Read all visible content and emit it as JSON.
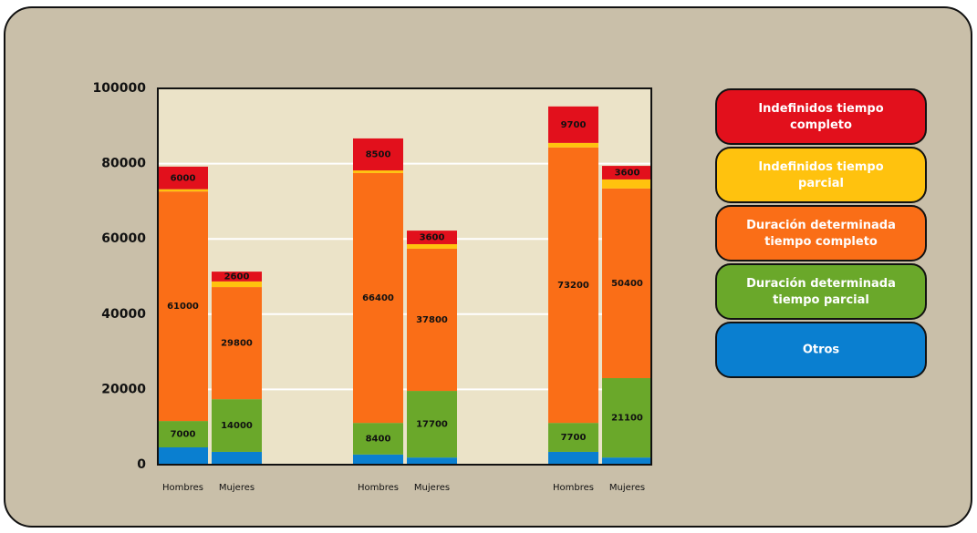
{
  "chart_data": {
    "type": "stacked_bar",
    "categories": [
      "Hombres",
      "Mujeres",
      "Hombres",
      "Mujeres",
      "Hombres",
      "Mujeres"
    ],
    "series": [
      {
        "name": "Otros",
        "color": "#0a7fd0",
        "values": [
          4600,
          3400,
          2700,
          1900,
          3400,
          1900
        ]
      },
      {
        "name": "Duración determinada tiempo parcial",
        "color": "#6aa82a",
        "values": [
          7000,
          14000,
          8400,
          17700,
          7700,
          21100
        ]
      },
      {
        "name": "Duración determinada tiempo completo",
        "color": "#fa6e17",
        "values": [
          61000,
          29800,
          66400,
          37800,
          73200,
          50400
        ]
      },
      {
        "name": "Indefinidos tiempo parcial",
        "color": "#ffc20e",
        "values": [
          600,
          1500,
          700,
          1200,
          1200,
          2400
        ]
      },
      {
        "name": "Indefinidos tiempo completo",
        "color": "#e2101c",
        "values": [
          6000,
          2600,
          8500,
          3600,
          9700,
          3600
        ]
      }
    ],
    "ylim": [
      0,
      100000
    ],
    "yticks": [
      0,
      20000,
      40000,
      60000,
      80000,
      100000
    ],
    "grid": true
  }
}
